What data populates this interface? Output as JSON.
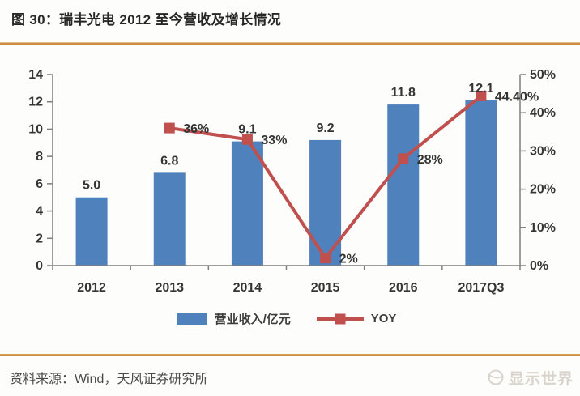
{
  "title": "图 30：瑞丰光电 2012 至今营收及增长情况",
  "footer": {
    "source": "资料来源：Wind，天风证券研究所",
    "watermark": "显示世界"
  },
  "colors": {
    "bar": "#4F81BD",
    "line": "#C0504D",
    "axis": "#7f7f7f",
    "chart_text": "#353535",
    "divider": "#C07B2A"
  },
  "chart_data": {
    "type": "bar",
    "subtype": "bar+line combo",
    "categories": [
      "2012",
      "2013",
      "2014",
      "2015",
      "2016",
      "2017Q3"
    ],
    "series": [
      {
        "name": "营业收入/亿元",
        "type": "bar",
        "axis": "left",
        "values": [
          5.0,
          6.8,
          9.1,
          9.2,
          11.8,
          12.1
        ],
        "labels": [
          "5.0",
          "6.8",
          "9.1",
          "9.2",
          "11.8",
          "12.1"
        ]
      },
      {
        "name": "YOY",
        "type": "line",
        "axis": "right",
        "values": [
          null,
          36,
          33,
          2,
          28,
          44.4
        ],
        "labels": [
          "",
          "36%",
          "33%",
          "2%",
          "28%",
          "44.40%"
        ]
      }
    ],
    "left_axis": {
      "min": 0,
      "max": 14,
      "step": 2,
      "ticks": [
        "0",
        "2",
        "4",
        "6",
        "8",
        "10",
        "12",
        "14"
      ]
    },
    "right_axis": {
      "min": 0,
      "max": 50,
      "step": 10,
      "ticks": [
        "0%",
        "10%",
        "20%",
        "30%",
        "40%",
        "50%"
      ]
    },
    "grid": false,
    "legend_position": "bottom"
  }
}
